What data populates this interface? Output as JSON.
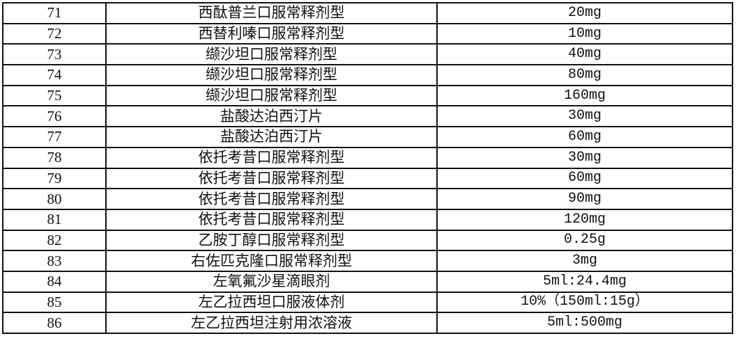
{
  "rows": [
    {
      "no": "71",
      "name": "西酞普兰口服常释剂型",
      "spec": "20mg"
    },
    {
      "no": "72",
      "name": "西替利嗪口服常释剂型",
      "spec": "10mg"
    },
    {
      "no": "73",
      "name": "缬沙坦口服常释剂型",
      "spec": "40mg"
    },
    {
      "no": "74",
      "name": "缬沙坦口服常释剂型",
      "spec": "80mg"
    },
    {
      "no": "75",
      "name": "缬沙坦口服常释剂型",
      "spec": "160mg"
    },
    {
      "no": "76",
      "name": "盐酸达泊西汀片",
      "spec": "30mg"
    },
    {
      "no": "77",
      "name": "盐酸达泊西汀片",
      "spec": "60mg"
    },
    {
      "no": "78",
      "name": "依托考昔口服常释剂型",
      "spec": "30mg"
    },
    {
      "no": "79",
      "name": "依托考昔口服常释剂型",
      "spec": "60mg"
    },
    {
      "no": "80",
      "name": "依托考昔口服常释剂型",
      "spec": "90mg"
    },
    {
      "no": "81",
      "name": "依托考昔口服常释剂型",
      "spec": "120mg"
    },
    {
      "no": "82",
      "name": "乙胺丁醇口服常释剂型",
      "spec": "0.25g"
    },
    {
      "no": "83",
      "name": "右佐匹克隆口服常释剂型",
      "spec": "3mg"
    },
    {
      "no": "84",
      "name": "左氧氟沙星滴眼剂",
      "spec": "5ml:24.4mg"
    },
    {
      "no": "85",
      "name": "左乙拉西坦口服液体剂",
      "spec": "10%（150ml:15g）"
    },
    {
      "no": "86",
      "name": "左乙拉西坦注射用浓溶液",
      "spec": "5ml:500mg"
    }
  ]
}
